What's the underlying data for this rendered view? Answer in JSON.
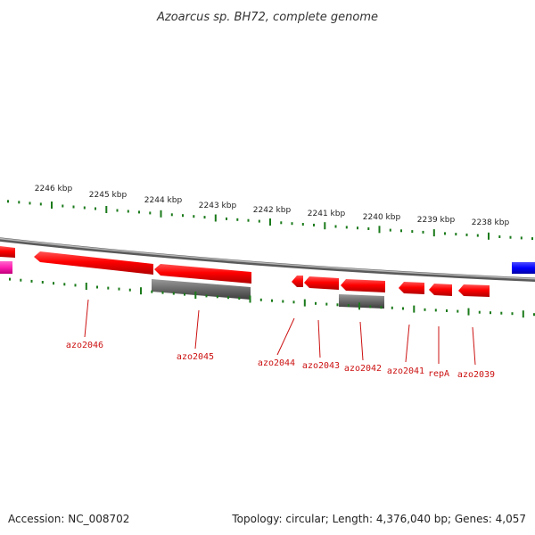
{
  "title": "Azoarcus sp. BH72, complete genome",
  "footer": {
    "accession": "Accession: NC_008702",
    "summary": "Topology: circular; Length: 4,376,040 bp; Genes: 4,057"
  },
  "colors": {
    "backbone": "#8a8a8a",
    "gene": "#ff0000",
    "gene_dark": "#b80000",
    "cds": "#6e6e6e",
    "tick": "#1a7a1a",
    "label": "#cc1111",
    "blue_feature": "#0000ff",
    "pink_feature": "#ff1fb0"
  },
  "kbp_labels": [
    "2246 kbp",
    "2245 kbp",
    "2244 kbp",
    "2243 kbp",
    "2242 kbp",
    "2241 kbp",
    "2240 kbp",
    "2239 kbp",
    "2238 kbp"
  ],
  "gene_labels": [
    "azo2046",
    "azo2045",
    "azo2044",
    "azo2043",
    "azo2042",
    "azo2041",
    "repA",
    "azo2039"
  ]
}
